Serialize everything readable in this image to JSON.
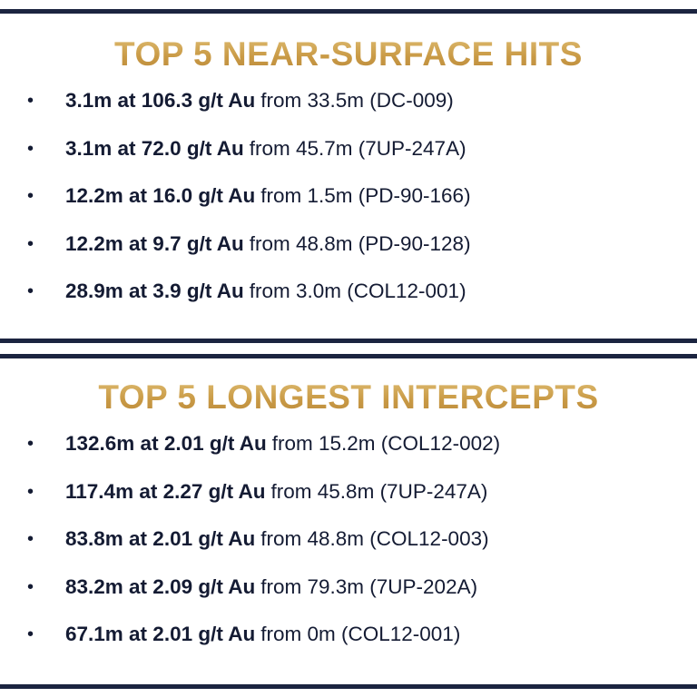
{
  "sections": [
    {
      "title": "TOP 5 NEAR-SURFACE HITS",
      "items": [
        {
          "bold": "3.1m at 106.3 g/t Au",
          "rest": "from 33.5m (DC-009)"
        },
        {
          "bold": "3.1m at 72.0 g/t Au",
          "rest": "from 45.7m (7UP-247A)"
        },
        {
          "bold": "12.2m at 16.0 g/t Au",
          "rest": "from 1.5m (PD-90-166)"
        },
        {
          "bold": "12.2m at 9.7 g/t Au",
          "rest": "from 48.8m (PD-90-128)"
        },
        {
          "bold": "28.9m at 3.9 g/t Au",
          "rest": "from 3.0m (COL12-001)"
        }
      ]
    },
    {
      "title": "TOP 5 LONGEST INTERCEPTS",
      "items": [
        {
          "bold": "132.6m at 2.01 g/t Au",
          "rest": "from 15.2m (COL12-002)"
        },
        {
          "bold": "117.4m at 2.27 g/t Au",
          "rest": "from 45.8m (7UP-247A)"
        },
        {
          "bold": "83.8m at 2.01 g/t Au",
          "rest": "from 48.8m (COL12-003)"
        },
        {
          "bold": "83.2m at 2.09 g/t Au",
          "rest": "from 79.3m (7UP-202A)"
        },
        {
          "bold": "67.1m at 2.01 g/t Au",
          "rest": "from 0m (COL12-001)"
        }
      ]
    }
  ]
}
